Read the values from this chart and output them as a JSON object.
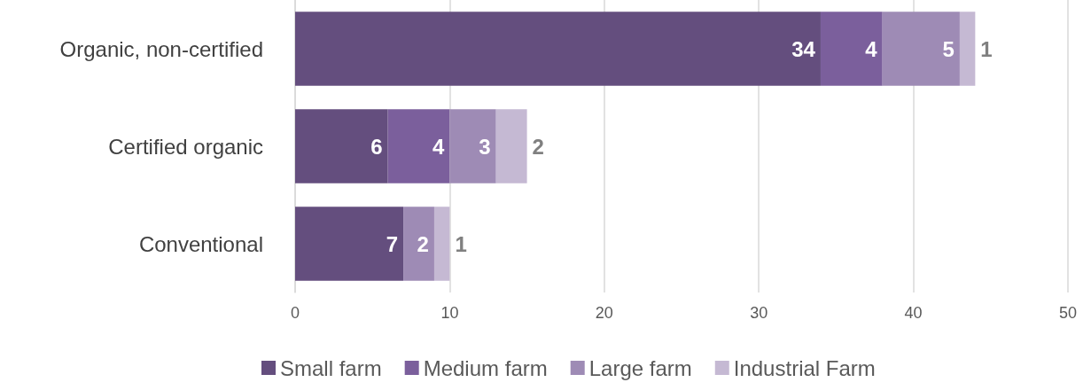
{
  "chart_data": {
    "type": "bar",
    "orientation": "horizontal",
    "stacked": true,
    "categories": [
      "Organic, non-certified",
      "Certified organic",
      "Conventional"
    ],
    "series": [
      {
        "name": "Small farm",
        "color": "#644e7e",
        "values": [
          34,
          6,
          7
        ]
      },
      {
        "name": "Medium farm",
        "color": "#7b5f9c",
        "values": [
          4,
          4,
          null
        ]
      },
      {
        "name": "Large farm",
        "color": "#9e8bb5",
        "values": [
          5,
          3,
          2
        ]
      },
      {
        "name": "Industrial Farm",
        "color": "#c5b9d3",
        "values": [
          1,
          2,
          1
        ]
      }
    ],
    "xlim": [
      0,
      50
    ],
    "xticks": [
      0,
      10,
      20,
      30,
      40,
      50
    ],
    "grid": "x",
    "legend": "bottom",
    "data_labels": true
  }
}
